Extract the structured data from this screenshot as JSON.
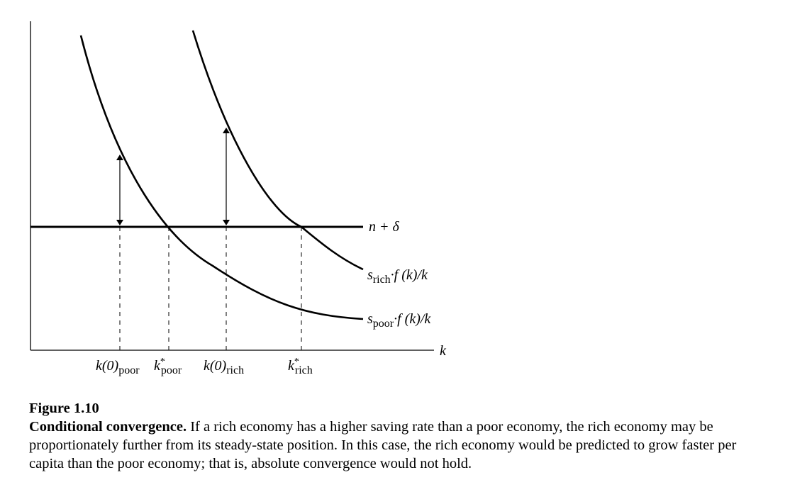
{
  "labels": {
    "n_delta": "n + δ",
    "k_axis": "k",
    "s_rich": "s",
    "s_rich_sub": "rich",
    "s_rich_rest": "·f (k)/k",
    "s_poor": "s",
    "s_poor_sub": "poor",
    "s_poor_rest": "·f (k)/k",
    "k0_poor": "k(0)",
    "k0_poor_sub": "poor",
    "kstar_poor": "k",
    "kstar_poor_sup": "*",
    "kstar_poor_sub": "poor",
    "k0_rich": "k(0)",
    "k0_rich_sub": "rich",
    "kstar_rich": "k",
    "kstar_rich_sup": "*",
    "kstar_rich_sub": "rich"
  },
  "caption": {
    "number": "Figure 1.10",
    "heading": "Conditional convergence.",
    "text": "If a rich economy has a higher saving rate than a poor economy, the rich economy may be proportionately further from its steady-state position. In this case, the rich economy would be predicted to grow faster per capita than the poor economy; that is, absolute convergence would not hold."
  }
}
